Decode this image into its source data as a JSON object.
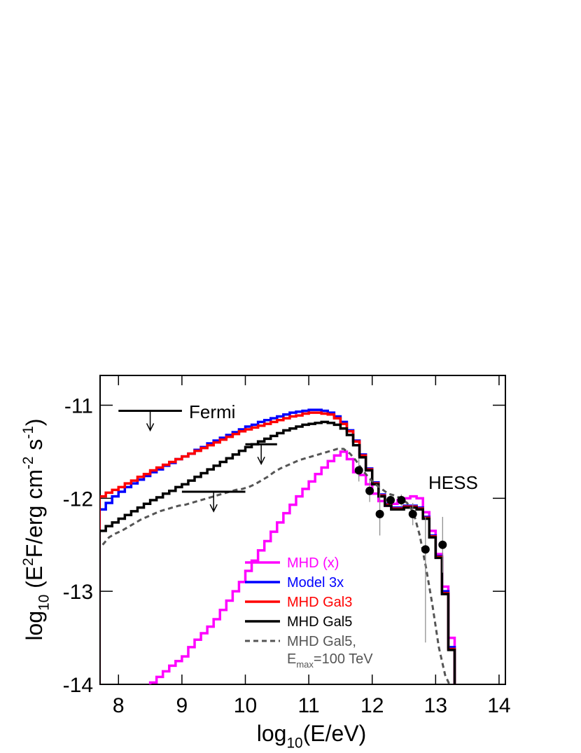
{
  "chart_data": {
    "type": "step",
    "xlabel": [
      {
        "t": "log"
      },
      {
        "t": "10",
        "sub": true
      },
      {
        "t": "(E/eV)"
      }
    ],
    "ylabel": [
      {
        "t": "log"
      },
      {
        "t": "10",
        "sub": true
      },
      {
        "t": " (E"
      },
      {
        "t": "2",
        "sup": true
      },
      {
        "t": "F/erg cm"
      },
      {
        "t": "-2",
        "sup": true
      },
      {
        "t": " s"
      },
      {
        "t": "-1",
        "sup": true
      },
      {
        "t": ")"
      }
    ],
    "xlim": [
      7.71,
      14.1
    ],
    "ylim": [
      -14,
      -10.68
    ],
    "xticks": [
      8,
      9,
      10,
      11,
      12,
      13,
      14
    ],
    "yticks": [
      -14,
      -13,
      -12,
      -11
    ],
    "x": [
      7.7,
      7.8,
      7.9,
      8.0,
      8.1,
      8.2,
      8.3,
      8.4,
      8.5,
      8.6,
      8.7,
      8.8,
      8.9,
      9.0,
      9.1,
      9.2,
      9.3,
      9.4,
      9.5,
      9.6,
      9.7,
      9.8,
      9.9,
      10.0,
      10.1,
      10.2,
      10.3,
      10.4,
      10.5,
      10.6,
      10.7,
      10.8,
      10.9,
      11.0,
      11.1,
      11.2,
      11.3,
      11.4,
      11.5,
      11.6,
      11.7,
      11.8,
      11.9,
      12.0,
      12.1,
      12.2,
      12.3,
      12.4,
      12.5,
      12.6,
      12.7,
      12.8,
      12.9,
      13.0,
      13.1,
      13.2
    ],
    "series": [
      {
        "name": [
          {
            "t": "MHD (x)"
          }
        ],
        "color": "#ff00ff",
        "dash": false,
        "values": [
          null,
          null,
          null,
          null,
          null,
          null,
          null,
          -14.05,
          -13.98,
          -13.92,
          -13.86,
          -13.8,
          -13.75,
          -13.7,
          -13.6,
          -13.52,
          -13.45,
          -13.38,
          -13.3,
          -13.2,
          -13.1,
          -13.0,
          -12.9,
          -12.78,
          -12.67,
          -12.56,
          -12.46,
          -12.36,
          -12.26,
          -12.16,
          -12.07,
          -11.98,
          -11.9,
          -11.82,
          -11.74,
          -11.67,
          -11.6,
          -11.54,
          -11.5,
          -11.58,
          -11.72,
          -11.75,
          -11.85,
          -11.95,
          -12.03,
          -12.08,
          -12.06,
          -12.02,
          -12.0,
          -11.98,
          -12.0,
          -12.15,
          -12.35,
          -12.6,
          -12.95,
          -13.5
        ]
      },
      {
        "name": [
          {
            "t": "Model 3x"
          }
        ],
        "color": "#0000ff",
        "dash": false,
        "values": [
          -12.12,
          -12.05,
          -11.98,
          -11.93,
          -11.88,
          -11.84,
          -11.8,
          -11.76,
          -11.72,
          -11.69,
          -11.65,
          -11.62,
          -11.58,
          -11.55,
          -11.52,
          -11.48,
          -11.45,
          -11.41,
          -11.38,
          -11.35,
          -11.32,
          -11.29,
          -11.26,
          -11.23,
          -11.21,
          -11.18,
          -11.16,
          -11.14,
          -11.12,
          -11.1,
          -11.08,
          -11.07,
          -11.06,
          -11.05,
          -11.05,
          -11.06,
          -11.08,
          -11.12,
          -11.18,
          -11.27,
          -11.38,
          -11.53,
          -11.68,
          -11.83,
          -11.96,
          -12.06,
          -12.1,
          -12.1,
          -12.08,
          -12.08,
          -12.1,
          -12.2,
          -12.4,
          -12.62,
          -13.0,
          -13.6
        ]
      },
      {
        "name": [
          {
            "t": "MHD Gal3"
          }
        ],
        "color": "#ff0000",
        "dash": false,
        "values": [
          -11.98,
          -11.94,
          -11.91,
          -11.88,
          -11.84,
          -11.81,
          -11.77,
          -11.74,
          -11.7,
          -11.67,
          -11.64,
          -11.61,
          -11.58,
          -11.55,
          -11.52,
          -11.49,
          -11.46,
          -11.43,
          -11.4,
          -11.37,
          -11.34,
          -11.31,
          -11.28,
          -11.26,
          -11.24,
          -11.22,
          -11.2,
          -11.18,
          -11.16,
          -11.14,
          -11.12,
          -11.11,
          -11.09,
          -11.08,
          -11.08,
          -11.09,
          -11.1,
          -11.14,
          -11.2,
          -11.28,
          -11.39,
          -11.54,
          -11.69,
          -11.84,
          -11.97,
          -12.07,
          -12.11,
          -12.11,
          -12.09,
          -12.09,
          -12.11,
          -12.21,
          -12.41,
          -12.63,
          -13.02,
          -13.62
        ]
      },
      {
        "name": [
          {
            "t": "MHD Gal5"
          }
        ],
        "color": "#000000",
        "dash": false,
        "values": [
          -12.35,
          -12.3,
          -12.26,
          -12.22,
          -12.18,
          -12.14,
          -12.1,
          -12.06,
          -12.02,
          -11.99,
          -11.95,
          -11.92,
          -11.88,
          -11.85,
          -11.81,
          -11.77,
          -11.73,
          -11.69,
          -11.65,
          -11.61,
          -11.57,
          -11.53,
          -11.49,
          -11.45,
          -11.42,
          -11.39,
          -11.36,
          -11.33,
          -11.3,
          -11.27,
          -11.25,
          -11.23,
          -11.21,
          -11.2,
          -11.19,
          -11.18,
          -11.19,
          -11.21,
          -11.25,
          -11.32,
          -11.43,
          -11.56,
          -11.7,
          -11.85,
          -11.98,
          -12.08,
          -12.12,
          -12.12,
          -12.1,
          -12.1,
          -12.12,
          -12.22,
          -12.42,
          -12.64,
          -13.03,
          -13.63
        ]
      },
      {
        "name": [
          {
            "t": "MHD Gal5,"
          }
        ],
        "name_line2": [
          {
            "t": "E"
          },
          {
            "t": "max",
            "sub": true
          },
          {
            "t": "=100 TeV"
          }
        ],
        "color": "#555555",
        "dash": true,
        "values": [
          -12.5,
          -12.42,
          -12.38,
          -12.35,
          -12.31,
          -12.27,
          -12.23,
          -12.2,
          -12.17,
          -12.14,
          -12.12,
          -12.1,
          -12.08,
          -12.07,
          -12.05,
          -12.03,
          -12.01,
          -11.99,
          -11.97,
          -11.95,
          -11.93,
          -11.91,
          -11.9,
          -11.88,
          -11.85,
          -11.81,
          -11.77,
          -11.72,
          -11.68,
          -11.65,
          -11.62,
          -11.59,
          -11.57,
          -11.55,
          -11.53,
          -11.51,
          -11.49,
          -11.47,
          -11.47,
          -11.52,
          -11.6,
          -11.7,
          -11.78,
          -11.85,
          -11.9,
          -11.95,
          -11.97,
          -12.0,
          -12.05,
          -12.15,
          -12.4,
          -12.75,
          -13.15,
          -13.6,
          -13.9,
          -14.05
        ]
      }
    ],
    "hess": {
      "label": "HESS",
      "x": [
        11.79,
        11.96,
        12.12,
        12.29,
        12.46,
        12.64,
        12.84,
        13.11
      ],
      "y": [
        -11.7,
        -11.92,
        -12.17,
        -12.02,
        -12.02,
        -12.17,
        -12.55,
        -12.5
      ],
      "yerr_low": [
        0.12,
        0.12,
        0.23,
        0.05,
        0.06,
        0.12,
        1.0,
        0.3
      ],
      "yerr_high": [
        0.12,
        0.12,
        0.23,
        0.05,
        0.06,
        0.12,
        0.35,
        0.3
      ]
    },
    "fermi": {
      "label": "Fermi",
      "x_low": [
        8.0,
        10.0,
        9.0
      ],
      "x_high": [
        9.0,
        10.5,
        10.0
      ],
      "y": [
        -11.06,
        -11.42,
        -11.93
      ]
    }
  }
}
